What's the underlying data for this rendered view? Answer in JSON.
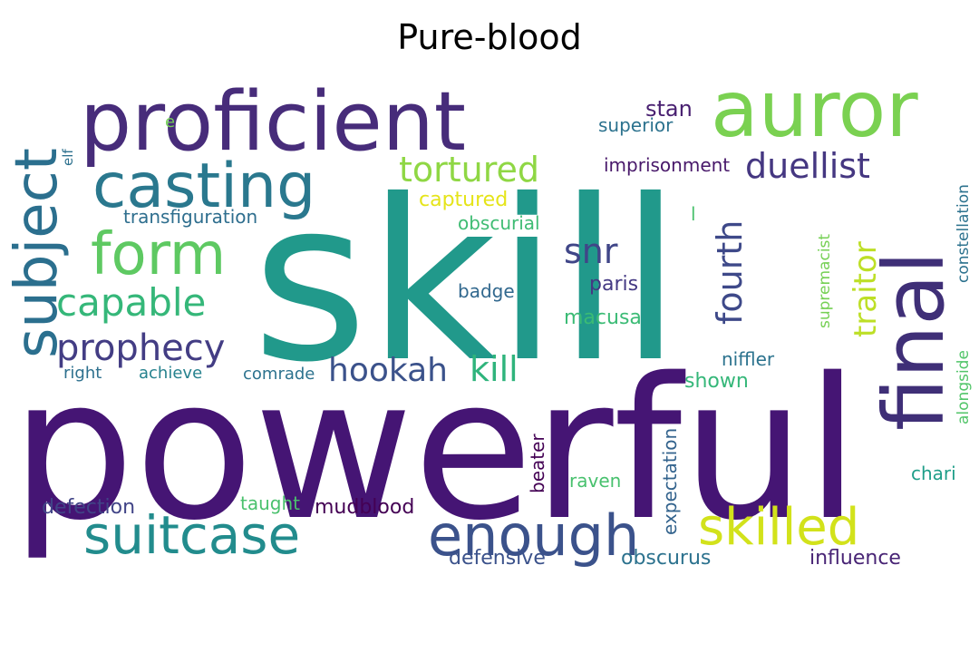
{
  "title": "Pure-blood",
  "words": [
    {
      "text": "skill",
      "color": "#21998b",
      "vertical": false
    },
    {
      "text": "powerful",
      "color": "#451574",
      "vertical": false
    },
    {
      "text": "proficient",
      "color": "#472c7a",
      "vertical": false
    },
    {
      "text": "auror",
      "color": "#7ad151",
      "vertical": false
    },
    {
      "text": "final",
      "color": "#3f2f77",
      "vertical": true
    },
    {
      "text": "subject",
      "color": "#2b6f8e",
      "vertical": true
    },
    {
      "text": "casting",
      "color": "#2a788e",
      "vertical": false
    },
    {
      "text": "form",
      "color": "#5ec962",
      "vertical": false
    },
    {
      "text": "enough",
      "color": "#3b528b",
      "vertical": false
    },
    {
      "text": "suitcase",
      "color": "#228c8d",
      "vertical": false
    },
    {
      "text": "skilled",
      "color": "#d2e21b",
      "vertical": false
    },
    {
      "text": "capable",
      "color": "#35b779",
      "vertical": false
    },
    {
      "text": "prophecy",
      "color": "#433d84",
      "vertical": false
    },
    {
      "text": "tortured",
      "color": "#8fd744",
      "vertical": false
    },
    {
      "text": "duellist",
      "color": "#453781",
      "vertical": false
    },
    {
      "text": "hookah",
      "color": "#3b528b",
      "vertical": false
    },
    {
      "text": "kill",
      "color": "#2fb47c",
      "vertical": false
    },
    {
      "text": "snr",
      "color": "#404688",
      "vertical": false
    },
    {
      "text": "fourth",
      "color": "#3e4989",
      "vertical": true
    },
    {
      "text": "traitor",
      "color": "#bddf26",
      "vertical": true
    },
    {
      "text": "imprisonment",
      "color": "#48186a",
      "vertical": false
    },
    {
      "text": "stan",
      "color": "#481f70",
      "vertical": false
    },
    {
      "text": "superior",
      "color": "#2c728e",
      "vertical": false
    },
    {
      "text": "transfiguration",
      "color": "#2e6e8e",
      "vertical": false
    },
    {
      "text": "captured",
      "color": "#e5e419",
      "vertical": false
    },
    {
      "text": "obscurial",
      "color": "#3fbc73",
      "vertical": false
    },
    {
      "text": "badge",
      "color": "#31688e",
      "vertical": false
    },
    {
      "text": "paris",
      "color": "#443983",
      "vertical": false
    },
    {
      "text": "macusa",
      "color": "#3bbb75",
      "vertical": false
    },
    {
      "text": "supremacist",
      "color": "#75d054",
      "vertical": true
    },
    {
      "text": "constellation",
      "color": "#2c728e",
      "vertical": true
    },
    {
      "text": "alongside",
      "color": "#52c569",
      "vertical": true
    },
    {
      "text": "niffler",
      "color": "#2c738e",
      "vertical": false
    },
    {
      "text": "shown",
      "color": "#35b779",
      "vertical": false
    },
    {
      "text": "right",
      "color": "#2d708e",
      "vertical": false
    },
    {
      "text": "achieve",
      "color": "#26828e",
      "vertical": false
    },
    {
      "text": "comrade",
      "color": "#2c728e",
      "vertical": false
    },
    {
      "text": "beater",
      "color": "#440154",
      "vertical": true
    },
    {
      "text": "raven",
      "color": "#48c16e",
      "vertical": false
    },
    {
      "text": "expectation",
      "color": "#33638d",
      "vertical": true
    },
    {
      "text": "chari",
      "color": "#1f9e89",
      "vertical": false
    },
    {
      "text": "defection",
      "color": "#414487",
      "vertical": false
    },
    {
      "text": "taught",
      "color": "#4ac16d",
      "vertical": false
    },
    {
      "text": "mudblood",
      "color": "#440154",
      "vertical": false
    },
    {
      "text": "defensive",
      "color": "#3b528b",
      "vertical": false
    },
    {
      "text": "obscurus",
      "color": "#2c728e",
      "vertical": false
    },
    {
      "text": "influence",
      "color": "#482475",
      "vertical": false
    },
    {
      "text": "elf",
      "color": "#2d708e",
      "vertical": true
    },
    {
      "text": "e",
      "color": "#73d056",
      "vertical": false
    },
    {
      "text": "l",
      "color": "#4ac16d",
      "vertical": false
    }
  ]
}
